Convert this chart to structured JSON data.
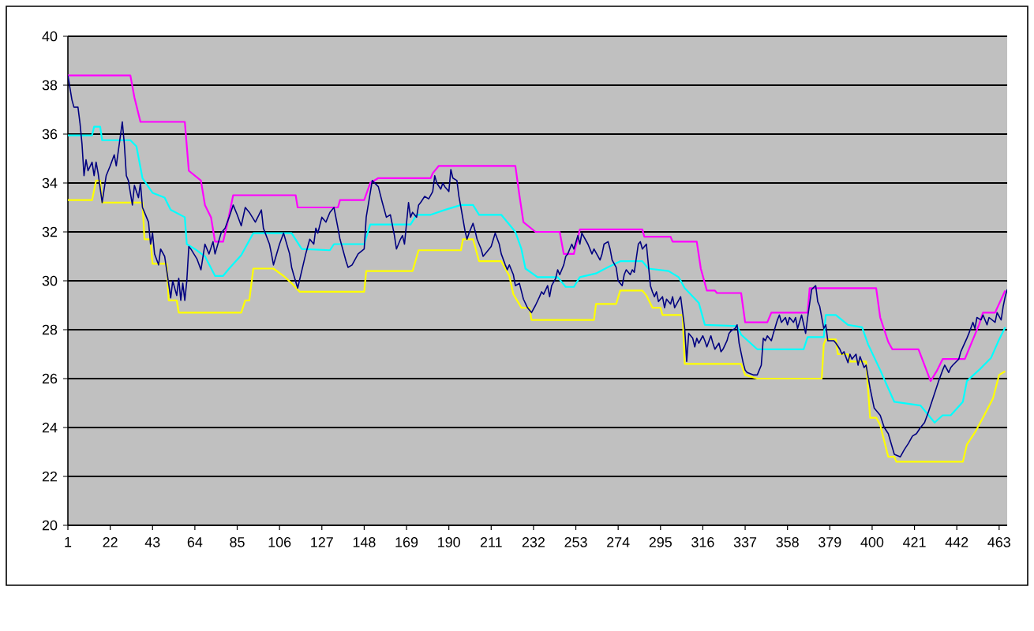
{
  "chart_data": {
    "type": "line",
    "xlim": [
      1,
      467
    ],
    "ylim": [
      20,
      40
    ],
    "xticks": [
      1,
      22,
      43,
      64,
      85,
      106,
      127,
      148,
      169,
      190,
      211,
      232,
      253,
      274,
      295,
      316,
      337,
      358,
      379,
      400,
      421,
      442,
      463
    ],
    "yticks": [
      20,
      22,
      24,
      26,
      28,
      30,
      32,
      34,
      36,
      38,
      40
    ],
    "grid": "y",
    "series": [
      {
        "color": "#ff00ff",
        "x": [
          1,
          32,
          34,
          37,
          59,
          61,
          67,
          69,
          72,
          74,
          78,
          80,
          83,
          114,
          115,
          135,
          136,
          148,
          151,
          155,
          181,
          182,
          185,
          223,
          225,
          227,
          233,
          245,
          247,
          252,
          255,
          286,
          287,
          300,
          301,
          313,
          315,
          318,
          322,
          323,
          335,
          337,
          348,
          350,
          368,
          369,
          402,
          404,
          408,
          410,
          423,
          429,
          432,
          435,
          446,
          453,
          455,
          461,
          466
        ],
        "values": [
          38.4,
          38.4,
          37.5,
          36.5,
          36.5,
          34.5,
          34.1,
          33.1,
          32.6,
          31.6,
          31.6,
          32.3,
          33.5,
          33.5,
          33.0,
          33.0,
          33.3,
          33.3,
          34.0,
          34.2,
          34.2,
          34.4,
          34.7,
          34.7,
          33.5,
          32.4,
          32.0,
          32.0,
          31.1,
          31.1,
          32.1,
          32.1,
          31.8,
          31.8,
          31.6,
          31.6,
          30.5,
          29.6,
          29.6,
          29.5,
          29.5,
          28.3,
          28.3,
          28.7,
          28.7,
          29.7,
          29.7,
          28.5,
          27.5,
          27.2,
          27.2,
          25.9,
          26.3,
          26.8,
          26.8,
          28.2,
          28.7,
          28.7,
          29.6
        ]
      },
      {
        "color": "#ffff00",
        "x": [
          1,
          13,
          15,
          17,
          18,
          38,
          39,
          42,
          43,
          50,
          51,
          55,
          56,
          87,
          89,
          91,
          93,
          103,
          108,
          112,
          116,
          148,
          149,
          172,
          175,
          196,
          197,
          202,
          205,
          216,
          220,
          222,
          226,
          230,
          231,
          262,
          263,
          273,
          275,
          286,
          288,
          291,
          295,
          296,
          306,
          307,
          335,
          337,
          343,
          375,
          376,
          377,
          382,
          383,
          388,
          389,
          397,
          399,
          402,
          404,
          408,
          411,
          412,
          445,
          447,
          451,
          455,
          460,
          463,
          466
        ],
        "values": [
          33.3,
          33.3,
          34.1,
          34.1,
          33.2,
          33.2,
          31.7,
          31.7,
          30.7,
          30.7,
          29.2,
          29.2,
          28.7,
          28.7,
          29.2,
          29.2,
          30.5,
          30.5,
          30.2,
          29.9,
          29.55,
          29.55,
          30.4,
          30.4,
          31.25,
          31.25,
          31.7,
          31.7,
          30.8,
          30.8,
          30.2,
          29.45,
          28.9,
          28.9,
          28.4,
          28.4,
          29.05,
          29.05,
          29.6,
          29.6,
          29.4,
          28.9,
          28.9,
          28.6,
          28.6,
          26.6,
          26.6,
          26.15,
          26.0,
          26.0,
          27.4,
          27.6,
          27.6,
          27.0,
          27.0,
          26.7,
          26.7,
          24.4,
          24.4,
          24.1,
          22.8,
          22.8,
          22.6,
          22.6,
          23.3,
          23.8,
          24.4,
          25.2,
          26.15,
          26.3
        ]
      },
      {
        "color": "#00ffff",
        "x": [
          1,
          13,
          14,
          17,
          18,
          32,
          35,
          38,
          43,
          49,
          52,
          59,
          60,
          64,
          69,
          74,
          78,
          81,
          87,
          93,
          112,
          117,
          131,
          133,
          148,
          151,
          171,
          174,
          181,
          188,
          196,
          202,
          205,
          216,
          223,
          226,
          228,
          234,
          244,
          248,
          252,
          255,
          263,
          270,
          275,
          286,
          289,
          299,
          304,
          307,
          314,
          317,
          333,
          335,
          343,
          366,
          368,
          376,
          377,
          382,
          388,
          395,
          398,
          404,
          408,
          411,
          424,
          428,
          431,
          435,
          439,
          445,
          447,
          453,
          459,
          463,
          466
        ],
        "values": [
          35.95,
          35.95,
          36.3,
          36.3,
          35.75,
          35.75,
          35.5,
          34.2,
          33.6,
          33.4,
          32.9,
          32.6,
          31.5,
          31.3,
          31.0,
          30.2,
          30.2,
          30.5,
          31.05,
          31.95,
          31.95,
          31.3,
          31.25,
          31.5,
          31.5,
          32.3,
          32.3,
          32.7,
          32.7,
          32.9,
          33.1,
          33.1,
          32.7,
          32.7,
          32.0,
          31.3,
          30.5,
          30.15,
          30.15,
          29.75,
          29.75,
          30.15,
          30.3,
          30.6,
          30.8,
          30.8,
          30.5,
          30.4,
          30.15,
          29.7,
          29.1,
          28.2,
          28.15,
          27.8,
          27.2,
          27.2,
          27.7,
          27.7,
          28.6,
          28.6,
          28.2,
          28.1,
          27.4,
          26.35,
          25.6,
          25.05,
          24.9,
          24.5,
          24.2,
          24.5,
          24.5,
          25.05,
          25.9,
          26.35,
          26.85,
          27.6,
          28.1
        ]
      },
      {
        "color": "#000080",
        "x": [
          1,
          3,
          4,
          6,
          7,
          8,
          9,
          10,
          11,
          13,
          14,
          15,
          16,
          18,
          20,
          22,
          24,
          25,
          27,
          28,
          29,
          30,
          31,
          33,
          34,
          36,
          37,
          38,
          40,
          41,
          42,
          43,
          44,
          46,
          47,
          49,
          50,
          52,
          53,
          55,
          56,
          57,
          58,
          59,
          60,
          61,
          62,
          65,
          67,
          69,
          71,
          73,
          74,
          77,
          79,
          81,
          83,
          85,
          87,
          89,
          91,
          94,
          97,
          98,
          101,
          102,
          103,
          106,
          108,
          111,
          112,
          113,
          115,
          119,
          121,
          123,
          124,
          125,
          127,
          129,
          131,
          133,
          135,
          136,
          139,
          140,
          142,
          145,
          148,
          149,
          150,
          152,
          155,
          157,
          159,
          161,
          163,
          164,
          166,
          167,
          168,
          170,
          171,
          172,
          174,
          175,
          176,
          178,
          180,
          182,
          183,
          184,
          186,
          187,
          188,
          190,
          191,
          192,
          194,
          195,
          196,
          198,
          199,
          200,
          202,
          203,
          204,
          206,
          207,
          208,
          210,
          211,
          213,
          215,
          216,
          218,
          219,
          220,
          222,
          223,
          225,
          227,
          229,
          231,
          233,
          235,
          236,
          237,
          239,
          240,
          241,
          243,
          244,
          245,
          247,
          248,
          249,
          251,
          252,
          254,
          255,
          256,
          259,
          261,
          262,
          265,
          266,
          267,
          269,
          270,
          271,
          273,
          274,
          276,
          277,
          278,
          280,
          281,
          282,
          284,
          285,
          286,
          288,
          289,
          290,
          291,
          292,
          293,
          294,
          296,
          297,
          298,
          300,
          301,
          302,
          305,
          306,
          307,
          308,
          309,
          311,
          312,
          313,
          314,
          316,
          317,
          318,
          320,
          321,
          322,
          324,
          325,
          326,
          328,
          329,
          330,
          332,
          333,
          334,
          336,
          337,
          338,
          341,
          343,
          345,
          346,
          347,
          348,
          350,
          351,
          353,
          354,
          355,
          357,
          358,
          359,
          361,
          362,
          363,
          365,
          367,
          368,
          370,
          372,
          373,
          374,
          376,
          377,
          378,
          381,
          382,
          384,
          385,
          386,
          388,
          389,
          390,
          392,
          393,
          394,
          396,
          397,
          399,
          401,
          404,
          406,
          408,
          411,
          414,
          416,
          418,
          420,
          422,
          424,
          426,
          428,
          431,
          433,
          435,
          436,
          438,
          439,
          440,
          443,
          444,
          447,
          448,
          450,
          451,
          452,
          454,
          455,
          457,
          458,
          461,
          462,
          464,
          465,
          466,
          467
        ],
        "values": [
          38.4,
          37.4,
          37.1,
          37.1,
          36.45,
          35.6,
          34.3,
          34.95,
          34.5,
          34.85,
          34.3,
          34.85,
          34.4,
          33.2,
          34.3,
          34.7,
          35.15,
          34.7,
          35.9,
          36.5,
          35.6,
          34.3,
          34.1,
          33.1,
          33.9,
          33.4,
          34.0,
          33.0,
          32.6,
          32.4,
          31.5,
          31.95,
          31.1,
          30.65,
          31.3,
          31.0,
          30.45,
          29.3,
          30.0,
          29.4,
          30.1,
          29.2,
          29.9,
          29.2,
          30.0,
          31.4,
          31.3,
          30.9,
          30.45,
          31.5,
          31.1,
          31.6,
          31.1,
          31.95,
          32.15,
          32.6,
          33.1,
          32.7,
          32.25,
          33.0,
          32.8,
          32.4,
          32.9,
          32.15,
          31.5,
          31.1,
          30.65,
          31.5,
          31.95,
          31.1,
          30.55,
          30.25,
          29.7,
          31.1,
          31.7,
          31.5,
          32.15,
          31.95,
          32.6,
          32.4,
          32.8,
          33.0,
          32.15,
          31.7,
          30.8,
          30.55,
          30.65,
          31.1,
          31.3,
          32.6,
          33.1,
          34.1,
          33.85,
          33.2,
          32.6,
          32.7,
          31.85,
          31.3,
          31.7,
          31.85,
          31.5,
          33.2,
          32.6,
          32.8,
          32.6,
          33.1,
          33.2,
          33.45,
          33.35,
          33.65,
          34.3,
          34.0,
          33.75,
          34.0,
          33.85,
          33.65,
          34.55,
          34.2,
          34.1,
          33.45,
          33.0,
          32.05,
          31.7,
          31.95,
          32.35,
          32.05,
          31.7,
          31.3,
          31.0,
          31.1,
          31.3,
          31.4,
          31.95,
          31.5,
          31.1,
          30.65,
          30.45,
          30.65,
          30.25,
          29.8,
          29.9,
          29.25,
          28.9,
          28.7,
          29.0,
          29.35,
          29.55,
          29.45,
          29.8,
          29.35,
          29.8,
          30.1,
          30.45,
          30.25,
          30.65,
          31.0,
          31.1,
          31.5,
          31.3,
          31.85,
          31.5,
          31.95,
          31.5,
          31.1,
          31.3,
          30.85,
          31.1,
          31.5,
          31.6,
          31.3,
          30.85,
          30.55,
          30.0,
          29.8,
          30.25,
          30.45,
          30.25,
          30.45,
          30.35,
          31.5,
          31.6,
          31.3,
          31.5,
          30.65,
          29.8,
          29.55,
          29.35,
          29.55,
          29.15,
          29.35,
          28.9,
          29.25,
          29.05,
          29.35,
          28.9,
          29.35,
          28.7,
          28.05,
          26.7,
          27.85,
          27.65,
          27.3,
          27.65,
          27.45,
          27.75,
          27.55,
          27.3,
          27.75,
          27.45,
          27.2,
          27.45,
          27.1,
          27.2,
          27.55,
          27.85,
          27.95,
          28.05,
          28.2,
          27.45,
          26.65,
          26.35,
          26.25,
          26.15,
          26.15,
          26.55,
          27.65,
          27.55,
          27.75,
          27.55,
          27.85,
          28.4,
          28.6,
          28.3,
          28.5,
          28.2,
          28.5,
          28.3,
          28.5,
          28.05,
          28.6,
          27.85,
          28.5,
          29.65,
          29.8,
          29.15,
          28.95,
          28.05,
          28.2,
          27.55,
          27.55,
          27.45,
          27.2,
          27.0,
          27.1,
          26.65,
          27.0,
          26.8,
          27.0,
          26.55,
          26.9,
          26.45,
          26.55,
          25.6,
          24.8,
          24.5,
          24.0,
          23.75,
          22.9,
          22.8,
          23.1,
          23.35,
          23.65,
          23.75,
          24.0,
          24.2,
          24.65,
          25.4,
          25.9,
          26.35,
          26.55,
          26.25,
          26.45,
          26.55,
          26.8,
          27.1,
          27.65,
          27.85,
          28.3,
          28.05,
          28.5,
          28.4,
          28.6,
          28.2,
          28.5,
          28.3,
          28.7,
          28.4,
          28.95,
          29.35,
          29.65
        ]
      }
    ]
  }
}
